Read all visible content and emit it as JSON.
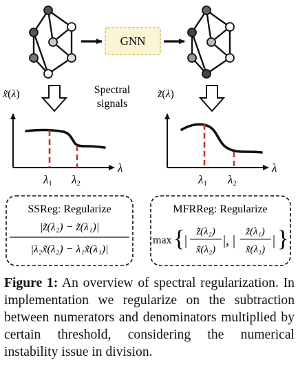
{
  "gnn": {
    "label": "GNN"
  },
  "left_plot": {
    "ylabel_base": "x̃",
    "ylabel_arg": "λ",
    "xlabel": "λ",
    "tick1": "λ",
    "tick1_sub": "1",
    "tick2": "λ",
    "tick2_sub": "2"
  },
  "right_plot": {
    "ylabel_base": "z̃",
    "ylabel_arg": "λ",
    "xlabel": "λ",
    "tick1": "λ",
    "tick1_sub": "1",
    "tick2": "λ",
    "tick2_sub": "2"
  },
  "spectral": {
    "line1": "Spectral",
    "line2": "signals"
  },
  "ssreg": {
    "title": "SSReg: Regularize",
    "numerator": "|z̃(λ₂) − z̃(λ₁)|",
    "denominator": "|λ₂x̃(λ₂) − λ₁x̃(λ₁)|"
  },
  "mfrreg": {
    "title": "MFRReg: Regularize",
    "max": "max",
    "frac1_num": "z̃(λ₂)",
    "frac1_den": "x̃(λ₂)",
    "frac2_num": "z̃(λ₁)",
    "frac2_den": "x̃(λ₁)"
  },
  "caption": {
    "label": "Figure 1:",
    "text": "An overview of spectral regularization. In implementation we regularize on the subtraction between numerators and denominators multiplied by certain threshold, considering the numerical instability issue in division."
  }
}
